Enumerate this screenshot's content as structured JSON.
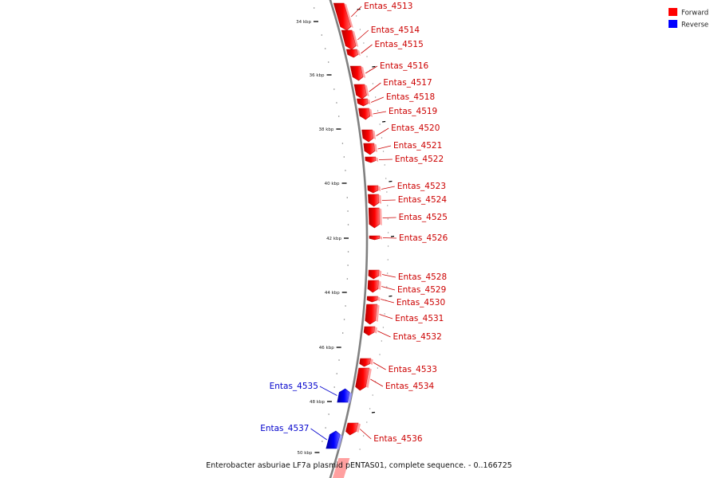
{
  "caption": "Enterobacter asburiae LF7a plasmid pENTAS01, complete sequence. - 0..166725",
  "legend": [
    {
      "label": "Forward",
      "color": "#ff0000"
    },
    {
      "label": "Reverse",
      "color": "#0000ff"
    }
  ],
  "colors": {
    "forward": "#ff0000",
    "forward_label": "#cc0000",
    "reverse": "#0000ff",
    "reverse_label": "#0000cc",
    "backbone": "#808080"
  },
  "tick_labels": [
    "34 kbp",
    "36 kbp",
    "38 kbp",
    "40 kbp",
    "42 kbp",
    "44 kbp",
    "46 kbp",
    "48 kbp",
    "50 kbp"
  ],
  "genes": [
    {
      "label": "Entas_4513",
      "strand": "forward"
    },
    {
      "label": "Entas_4514",
      "strand": "forward"
    },
    {
      "label": "Entas_4515",
      "strand": "forward"
    },
    {
      "label": "Entas_4516",
      "strand": "forward"
    },
    {
      "label": "Entas_4517",
      "strand": "forward"
    },
    {
      "label": "Entas_4518",
      "strand": "forward"
    },
    {
      "label": "Entas_4519",
      "strand": "forward"
    },
    {
      "label": "Entas_4520",
      "strand": "forward"
    },
    {
      "label": "Entas_4521",
      "strand": "forward"
    },
    {
      "label": "Entas_4522",
      "strand": "forward"
    },
    {
      "label": "Entas_4523",
      "strand": "forward"
    },
    {
      "label": "Entas_4524",
      "strand": "forward"
    },
    {
      "label": "Entas_4525",
      "strand": "forward"
    },
    {
      "label": "Entas_4526",
      "strand": "forward"
    },
    {
      "label": "Entas_4528",
      "strand": "forward"
    },
    {
      "label": "Entas_4529",
      "strand": "forward"
    },
    {
      "label": "Entas_4530",
      "strand": "forward"
    },
    {
      "label": "Entas_4531",
      "strand": "forward"
    },
    {
      "label": "Entas_4532",
      "strand": "forward"
    },
    {
      "label": "Entas_4533",
      "strand": "forward"
    },
    {
      "label": "Entas_4534",
      "strand": "forward"
    },
    {
      "label": "Entas_4535",
      "strand": "reverse"
    },
    {
      "label": "Entas_4536",
      "strand": "forward"
    },
    {
      "label": "Entas_4537",
      "strand": "reverse"
    }
  ]
}
